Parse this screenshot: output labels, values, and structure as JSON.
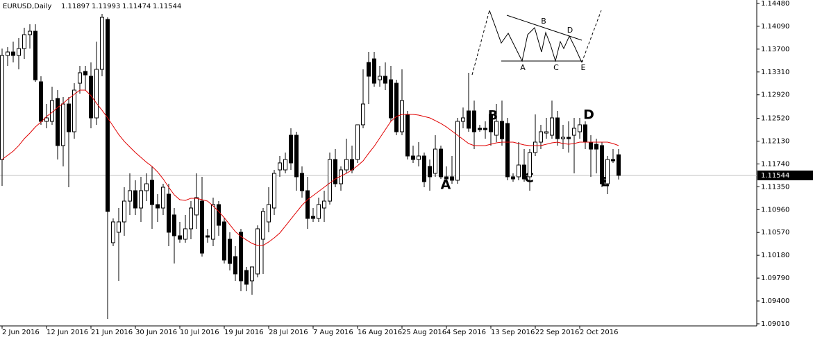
{
  "chart_data": {
    "type": "candlestick",
    "title": "EURUSD,Daily",
    "header_values": [
      "1.11897",
      "1.11993",
      "1.11474",
      "1.11544"
    ],
    "categories": [
      "2 Jun 2016",
      null,
      null,
      null,
      null,
      null,
      null,
      null,
      "12 Jun 2016",
      null,
      null,
      null,
      null,
      null,
      null,
      null,
      "21 Jun 2016",
      null,
      null,
      null,
      null,
      null,
      null,
      null,
      "30 Jun 2016",
      null,
      null,
      null,
      null,
      null,
      null,
      null,
      "10 Jul 2016",
      null,
      null,
      null,
      null,
      null,
      null,
      null,
      "19 Jul 2016",
      null,
      null,
      null,
      null,
      null,
      null,
      null,
      "28 Jul 2016",
      null,
      null,
      null,
      null,
      null,
      null,
      null,
      "7 Aug 2016",
      null,
      null,
      null,
      null,
      null,
      null,
      null,
      "16 Aug 2016",
      null,
      null,
      null,
      null,
      null,
      null,
      null,
      "25 Aug 2016",
      null,
      null,
      null,
      null,
      null,
      null,
      null,
      "4 Sep 2016",
      null,
      null,
      null,
      null,
      null,
      null,
      null,
      "13 Sep 2016",
      null,
      null,
      null,
      null,
      null,
      null,
      null,
      "22 Sep 2016",
      null,
      null,
      null,
      null,
      null,
      null,
      null,
      "2 Oct 2016",
      null,
      null,
      null,
      null,
      null,
      null,
      null
    ],
    "open": [
      1.11816,
      1.13592,
      1.13651,
      1.13592,
      1.1371,
      1.13947,
      1.14006,
      1.13142,
      1.12467,
      1.12467,
      1.12858,
      1.12053,
      1.12763,
      1.12289,
      1.13118,
      1.1332,
      1.13237,
      1.12526,
      1.13355,
      1.14208,
      1.10395,
      1.10573,
      1.1075,
      1.11105,
      1.11283,
      1.10987,
      1.11283,
      1.11461,
      1.11046,
      1.10987,
      1.11224,
      1.10869,
      1.10513,
      1.10454,
      1.10632,
      1.10869,
      1.11105,
      1.10513,
      1.10454,
      1.11046,
      1.1075,
      1.10454,
      1.10158,
      1.10573,
      1.09921,
      1.09744,
      1.09862,
      1.10454,
      1.1075,
      1.10987,
      1.11638,
      1.11638,
      1.1223,
      1.1223,
      1.11579,
      1.11283,
      1.10845,
      1.10809,
      1.10987,
      1.11105,
      1.11816,
      1.11401,
      1.11638,
      1.11816,
      1.11816,
      1.12408,
      1.13473,
      1.13533,
      1.13177,
      1.13237,
      1.13177,
      1.13118,
      1.12289,
      1.12585,
      1.11875,
      1.11816,
      1.11875,
      1.11697,
      1.11579,
      1.11993,
      1.1152,
      1.1152,
      1.11461,
      1.12467,
      1.12645,
      1.12645,
      1.12349,
      1.12349,
      1.12585,
      1.1223,
      1.12467,
      1.12431,
      1.1152,
      1.1152,
      1.11721,
      1.1152,
      1.11934,
      1.12112,
      1.12266,
      1.1223,
      1.12526,
      1.12171,
      1.12195,
      1.1223,
      1.12289,
      1.12408,
      1.12112,
      1.12076,
      1.12053,
      1.11401,
      1.11816,
      1.11897
    ],
    "high": [
      1.1371,
      1.13734,
      1.13829,
      1.13888,
      1.14065,
      1.14125,
      1.14125,
      1.13237,
      1.12763,
      1.13059,
      1.13,
      1.12881,
      1.12881,
      1.13118,
      1.13414,
      1.13414,
      1.13473,
      1.13829,
      1.14302,
      1.14243,
      1.10809,
      1.10987,
      1.11342,
      1.11579,
      1.11461,
      1.1152,
      1.11579,
      1.11697,
      1.11224,
      1.11401,
      1.11401,
      1.10987,
      1.1075,
      1.10869,
      1.11105,
      1.11579,
      1.1152,
      1.10632,
      1.11165,
      1.11105,
      1.10809,
      1.10573,
      1.10336,
      1.10632,
      1.09981,
      1.09981,
      1.10691,
      1.10987,
      1.11342,
      1.11638,
      1.11875,
      1.11934,
      1.12349,
      1.12289,
      1.11697,
      1.1152,
      1.10987,
      1.11165,
      1.11283,
      1.11934,
      1.11993,
      1.11697,
      1.12171,
      1.12053,
      1.12408,
      1.13355,
      1.13651,
      1.13651,
      1.13414,
      1.13473,
      1.13414,
      1.13177,
      1.13355,
      1.12645,
      1.12053,
      1.12112,
      1.11934,
      1.11816,
      1.1223,
      1.12053,
      1.11697,
      1.11875,
      1.12526,
      1.12704,
      1.13296,
      1.12822,
      1.12408,
      1.12467,
      1.12645,
      1.12763,
      1.12822,
      1.12526,
      1.11579,
      1.12112,
      1.11993,
      1.11993,
      1.12585,
      1.12408,
      1.12526,
      1.12822,
      1.12645,
      1.12408,
      1.12467,
      1.12526,
      1.12526,
      1.12467,
      1.1223,
      1.12171,
      1.12112,
      1.11875,
      1.11993,
      1.11993
    ],
    "low": [
      1.11366,
      1.13414,
      1.13473,
      1.13355,
      1.13533,
      1.1371,
      1.13142,
      1.12408,
      1.12349,
      1.12408,
      1.11816,
      1.11697,
      1.11342,
      1.12171,
      1.12941,
      1.13,
      1.12349,
      1.12408,
      1.13237,
      1.09093,
      1.10336,
      1.09744,
      1.10513,
      1.10869,
      1.10869,
      1.1075,
      1.11105,
      1.10632,
      1.1075,
      1.10869,
      1.10336,
      1.1004,
      1.10395,
      1.10395,
      1.10454,
      1.10632,
      1.10158,
      1.10395,
      1.10336,
      1.10513,
      1.1004,
      1.09921,
      1.09744,
      1.09566,
      1.09566,
      1.09507,
      1.09803,
      1.09862,
      1.10573,
      1.10869,
      1.1152,
      1.11579,
      1.11638,
      1.11283,
      1.11165,
      1.10632,
      1.1075,
      1.1075,
      1.1075,
      1.11046,
      1.11342,
      1.11283,
      1.11579,
      1.11579,
      1.11757,
      1.12349,
      1.12763,
      1.13059,
      1.13059,
      1.13,
      1.12467,
      1.1223,
      1.1223,
      1.11816,
      1.11757,
      1.11697,
      1.11342,
      1.11283,
      1.1152,
      1.11484,
      1.11437,
      1.11401,
      1.11401,
      1.12349,
      1.12289,
      1.11993,
      1.12289,
      1.12171,
      1.12053,
      1.12112,
      1.12053,
      1.11461,
      1.11437,
      1.11461,
      1.11437,
      1.11283,
      1.11875,
      1.11993,
      1.12171,
      1.12171,
      1.12053,
      1.11993,
      1.11934,
      1.11579,
      1.12171,
      1.11993,
      1.1152,
      1.11579,
      1.11342,
      1.11224,
      1.11757,
      1.11474
    ],
    "close": [
      1.13592,
      1.13651,
      1.13592,
      1.1371,
      1.13947,
      1.14006,
      1.13177,
      1.12467,
      1.12526,
      1.12822,
      1.12053,
      1.12763,
      1.12289,
      1.13,
      1.13296,
      1.1326,
      1.12526,
      1.13355,
      1.14243,
      1.10928,
      1.1075,
      1.1075,
      1.11105,
      1.11283,
      1.10987,
      1.11283,
      1.11401,
      1.11046,
      1.10987,
      1.11342,
      1.10573,
      1.10513,
      1.10454,
      1.10632,
      1.10987,
      1.11165,
      1.10217,
      1.1049,
      1.11046,
      1.10691,
      1.10099,
      1.1004,
      1.09862,
      1.09744,
      1.09685,
      1.09981,
      1.10632,
      1.10928,
      1.11046,
      1.11579,
      1.11757,
      1.11816,
      1.11757,
      1.1152,
      1.11283,
      1.10809,
      1.10809,
      1.11046,
      1.11105,
      1.11816,
      1.11401,
      1.11638,
      1.11816,
      1.11638,
      1.12408,
      1.12763,
      1.13237,
      1.13118,
      1.13237,
      1.13118,
      1.12526,
      1.12289,
      1.12822,
      1.11875,
      1.11816,
      1.11875,
      1.11437,
      1.1152,
      1.11993,
      1.1152,
      1.11484,
      1.11461,
      1.12467,
      1.12526,
      1.12349,
      1.12289,
      1.12325,
      1.12325,
      1.12289,
      1.12467,
      1.12171,
      1.1152,
      1.11484,
      1.11721,
      1.11484,
      1.11934,
      1.12112,
      1.12289,
      1.12289,
      1.12526,
      1.12171,
      1.12195,
      1.12171,
      1.12349,
      1.12408,
      1.12112,
      1.11993,
      1.11993,
      1.11401,
      1.11816,
      1.11792,
      1.11544
    ],
    "overlay": {
      "type": "line",
      "color": "#e00000",
      "values": [
        1.11816,
        1.11887,
        1.11958,
        1.12053,
        1.12171,
        1.12266,
        1.12372,
        1.12455,
        1.1255,
        1.12621,
        1.12704,
        1.12775,
        1.12858,
        1.12929,
        1.13,
        1.13,
        1.12905,
        1.12775,
        1.12656,
        1.12526,
        1.12384,
        1.12242,
        1.12124,
        1.12029,
        1.11934,
        1.11851,
        1.11768,
        1.11697,
        1.11603,
        1.11484,
        1.11342,
        1.11212,
        1.11129,
        1.11117,
        1.11153,
        1.11153,
        1.11129,
        1.11105,
        1.11022,
        1.10928,
        1.10821,
        1.10703,
        1.10584,
        1.10502,
        1.10442,
        1.10383,
        1.10348,
        1.10348,
        1.10407,
        1.10478,
        1.10561,
        1.10679,
        1.10798,
        1.10916,
        1.11034,
        1.11129,
        1.112,
        1.11271,
        1.11342,
        1.11413,
        1.11484,
        1.11532,
        1.11579,
        1.11638,
        1.11709,
        1.11792,
        1.11922,
        1.12041,
        1.12183,
        1.12325,
        1.12467,
        1.1255,
        1.12585,
        1.12585,
        1.12585,
        1.12574,
        1.1255,
        1.12526,
        1.12479,
        1.12431,
        1.12372,
        1.12301,
        1.1223,
        1.12159,
        1.12088,
        1.12053,
        1.12053,
        1.12053,
        1.12076,
        1.121,
        1.12112,
        1.12112,
        1.12112,
        1.12088,
        1.12064,
        1.12053,
        1.12053,
        1.12053,
        1.12076,
        1.121,
        1.12112,
        1.12088,
        1.12076,
        1.12088,
        1.12112,
        1.12112,
        1.12112,
        1.12112,
        1.12112,
        1.12112,
        1.12088,
        1.12053
      ]
    },
    "ylim": [
      1.08974,
      1.14539
    ],
    "yticks": [
      {
        "value": 1.1448,
        "label": "1.14480"
      },
      {
        "value": 1.1409,
        "label": "1.14090"
      },
      {
        "value": 1.137,
        "label": "1.13700"
      },
      {
        "value": 1.1331,
        "label": "1.13310"
      },
      {
        "value": 1.1292,
        "label": "1.12920"
      },
      {
        "value": 1.1252,
        "label": "1.12520"
      },
      {
        "value": 1.1213,
        "label": "1.12130"
      },
      {
        "value": 1.1174,
        "label": "1.11740"
      },
      {
        "value": 1.1135,
        "label": "1.11350"
      },
      {
        "value": 1.1096,
        "label": "1.10960"
      },
      {
        "value": 1.1057,
        "label": "1.10570"
      },
      {
        "value": 1.1018,
        "label": "1.10180"
      },
      {
        "value": 1.0979,
        "label": "1.09790"
      },
      {
        "value": 1.094,
        "label": "1.09400"
      },
      {
        "value": 1.0901,
        "label": "1.09010"
      }
    ],
    "last_price": {
      "value": 1.11544,
      "label": "1.11544"
    },
    "bull_color": "#ffffff",
    "bear_color": "#000000",
    "annotations": [
      "A",
      "B",
      "C",
      "D",
      "E"
    ],
    "pattern_labels": [
      "B",
      "D",
      "A",
      "C",
      "E"
    ]
  }
}
